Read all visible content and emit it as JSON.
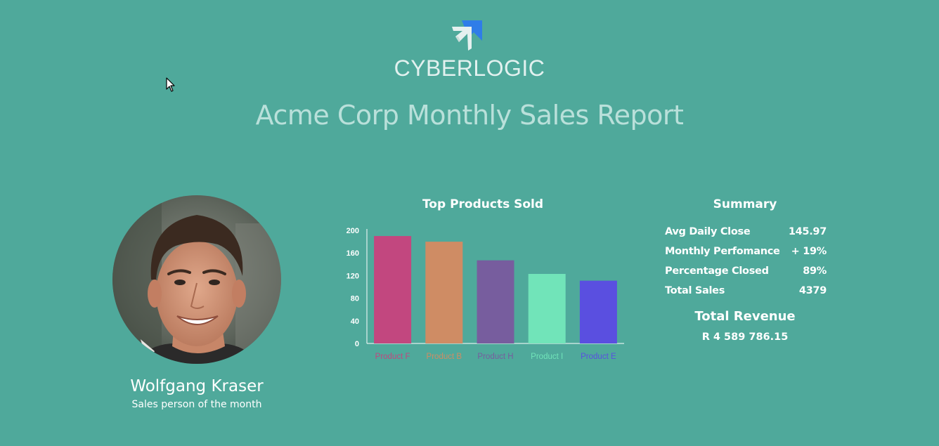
{
  "header": {
    "logo_text": "CYBERLOGIC",
    "title": "Acme Corp Monthly Sales Report"
  },
  "salesperson": {
    "name": "Wolfgang Kraser",
    "subtitle": "Sales person of the month"
  },
  "chart_title": "Top Products Sold",
  "chart_data": {
    "type": "bar",
    "title": "Top Products Sold",
    "categories": [
      "Product F",
      "Product B",
      "Product H",
      "Product I",
      "Product E"
    ],
    "values": [
      190,
      180,
      147,
      123,
      111
    ],
    "colors": [
      "#c2477f",
      "#cf8c64",
      "#775d9e",
      "#71e4b9",
      "#5a4fe0"
    ],
    "ylim": [
      0,
      200
    ],
    "yticks": [
      0,
      40,
      80,
      120,
      160,
      200
    ],
    "xlabel": "",
    "ylabel": "",
    "grid": false,
    "legend": "none"
  },
  "summary": {
    "title": "Summary",
    "rows": [
      {
        "label": "Avg Daily Close",
        "value": "145.97"
      },
      {
        "label": "Monthly Perfomance",
        "value": "+ 19%"
      },
      {
        "label": "Percentage Closed",
        "value": "89%"
      },
      {
        "label": "Total Sales",
        "value": "4379"
      }
    ]
  },
  "revenue": {
    "title": "Total Revenue",
    "value": "R 4 589 786.15"
  },
  "colors": {
    "background": "#4fa99b",
    "title_text": "#b9e0da",
    "logo_blue": "#2f7de8"
  }
}
